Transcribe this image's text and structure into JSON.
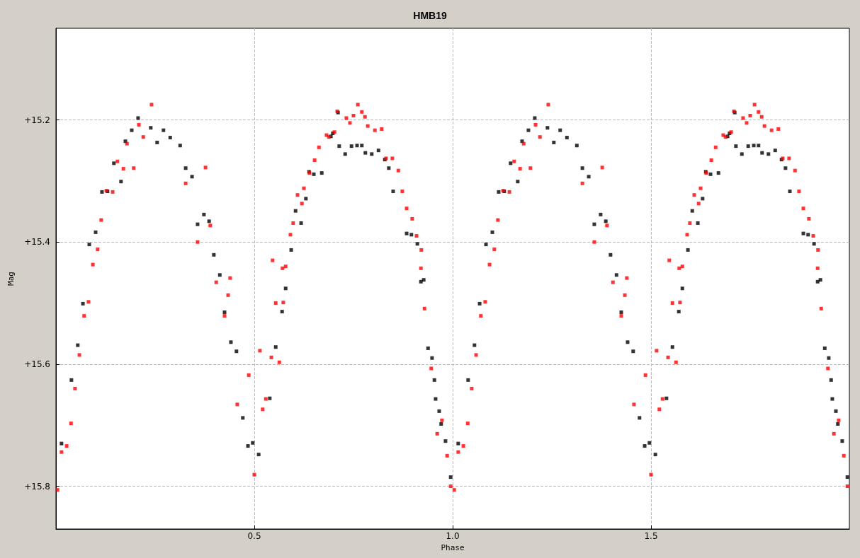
{
  "chart_data": {
    "type": "scatter",
    "title": "HMB19",
    "xlabel": "Phase",
    "ylabel": "Mag",
    "xlim": [
      0,
      2
    ],
    "xticks": [
      0.5,
      {
        "value": 1,
        "label": "1.0"
      },
      1.5
    ],
    "ylim": [
      15.87,
      15.05
    ],
    "yticks": [
      {
        "value": 15.2,
        "label": "+15.2"
      },
      {
        "value": 15.4,
        "label": "+15.4"
      },
      {
        "value": 15.6,
        "label": "+15.6"
      },
      {
        "value": 15.8,
        "label": "+15.8"
      }
    ],
    "grid": true,
    "marker": "square",
    "series": [
      {
        "color": "#000000",
        "x": [
          0.014,
          0.039,
          0.055,
          0.068,
          0.084,
          0.1,
          0.116,
          0.13,
          0.146,
          0.164,
          0.175,
          0.191,
          0.207,
          0.239,
          0.255,
          0.271,
          0.288,
          0.313,
          0.327,
          0.343,
          0.357,
          0.373,
          0.386,
          0.398,
          0.413,
          0.425,
          0.441,
          0.455,
          0.471,
          0.484,
          0.496,
          0.511,
          0.539,
          0.554,
          0.57,
          0.579,
          0.593,
          0.604,
          0.618,
          0.63,
          0.638,
          0.65,
          0.67,
          0.693,
          0.698,
          0.711,
          0.714,
          0.729,
          0.745,
          0.759,
          0.771,
          0.78,
          0.796,
          0.813,
          0.829,
          0.839,
          0.85,
          0.884,
          0.896,
          0.911,
          0.92,
          0.927,
          0.938,
          0.948,
          0.954,
          0.957,
          0.966,
          0.971,
          0.982,
          0.995,
          1.014,
          1.039,
          1.055,
          1.068,
          1.084,
          1.1,
          1.116,
          1.13,
          1.146,
          1.164,
          1.175,
          1.191,
          1.207,
          1.239,
          1.255,
          1.271,
          1.288,
          1.313,
          1.327,
          1.343,
          1.357,
          1.373,
          1.386,
          1.398,
          1.413,
          1.425,
          1.441,
          1.455,
          1.471,
          1.484,
          1.496,
          1.511,
          1.539,
          1.554,
          1.57,
          1.579,
          1.593,
          1.604,
          1.618,
          1.63,
          1.638,
          1.65,
          1.67,
          1.693,
          1.698,
          1.711,
          1.714,
          1.729,
          1.745,
          1.759,
          1.771,
          1.78,
          1.796,
          1.813,
          1.829,
          1.839,
          1.85,
          1.884,
          1.896,
          1.911,
          1.92,
          1.927,
          1.938,
          1.948,
          1.954,
          1.957,
          1.966,
          1.971,
          1.982,
          1.995
        ],
        "values": [
          15.73,
          15.626,
          15.569,
          15.501,
          15.404,
          15.384,
          15.318,
          15.317,
          15.271,
          15.301,
          15.235,
          15.217,
          15.197,
          15.213,
          15.237,
          15.217,
          15.229,
          15.242,
          15.279,
          15.293,
          15.371,
          15.355,
          15.366,
          15.421,
          15.454,
          15.515,
          15.564,
          15.579,
          15.688,
          15.734,
          15.729,
          15.748,
          15.656,
          15.572,
          15.514,
          15.476,
          15.413,
          15.349,
          15.369,
          15.329,
          15.285,
          15.289,
          15.287,
          15.227,
          15.222,
          15.188,
          15.243,
          15.256,
          15.243,
          15.242,
          15.242,
          15.254,
          15.256,
          15.25,
          15.265,
          15.279,
          15.317,
          15.386,
          15.388,
          15.403,
          15.465,
          15.462,
          15.574,
          15.59,
          15.626,
          15.657,
          15.677,
          15.698,
          15.726,
          15.785,
          15.73,
          15.626,
          15.569,
          15.501,
          15.404,
          15.384,
          15.318,
          15.317,
          15.271,
          15.301,
          15.235,
          15.217,
          15.197,
          15.213,
          15.237,
          15.217,
          15.229,
          15.242,
          15.279,
          15.293,
          15.371,
          15.355,
          15.366,
          15.421,
          15.454,
          15.515,
          15.564,
          15.579,
          15.688,
          15.734,
          15.729,
          15.748,
          15.656,
          15.572,
          15.514,
          15.476,
          15.413,
          15.349,
          15.369,
          15.329,
          15.285,
          15.289,
          15.287,
          15.227,
          15.222,
          15.188,
          15.243,
          15.256,
          15.243,
          15.242,
          15.242,
          15.254,
          15.256,
          15.25,
          15.265,
          15.279,
          15.317,
          15.386,
          15.388,
          15.403,
          15.465,
          15.462,
          15.574,
          15.59,
          15.626,
          15.657,
          15.677,
          15.698,
          15.726,
          15.785
        ]
      },
      {
        "color": "#ff0000",
        "x": [
          0.004,
          0.014,
          0.027,
          0.038,
          0.048,
          0.059,
          0.071,
          0.082,
          0.093,
          0.105,
          0.114,
          0.127,
          0.143,
          0.155,
          0.17,
          0.179,
          0.196,
          0.209,
          0.22,
          0.241,
          0.327,
          0.377,
          0.357,
          0.389,
          0.404,
          0.439,
          0.434,
          0.425,
          0.457,
          0.486,
          0.5,
          0.514,
          0.521,
          0.529,
          0.543,
          0.546,
          0.554,
          0.563,
          0.571,
          0.573,
          0.579,
          0.591,
          0.598,
          0.609,
          0.62,
          0.625,
          0.639,
          0.652,
          0.663,
          0.682,
          0.688,
          0.702,
          0.709,
          0.732,
          0.741,
          0.75,
          0.761,
          0.771,
          0.779,
          0.786,
          0.804,
          0.821,
          0.832,
          0.848,
          0.863,
          0.873,
          0.884,
          0.898,
          0.909,
          0.921,
          0.92,
          0.929,
          0.946,
          0.961,
          0.973,
          0.986,
          0.995,
          1.004,
          1.014,
          1.027,
          1.038,
          1.048,
          1.059,
          1.071,
          1.082,
          1.093,
          1.105,
          1.114,
          1.127,
          1.143,
          1.155,
          1.17,
          1.179,
          1.196,
          1.209,
          1.22,
          1.241,
          1.327,
          1.377,
          1.357,
          1.389,
          1.404,
          1.439,
          1.434,
          1.425,
          1.457,
          1.486,
          1.5,
          1.514,
          1.521,
          1.529,
          1.543,
          1.546,
          1.554,
          1.563,
          1.571,
          1.573,
          1.579,
          1.591,
          1.598,
          1.609,
          1.62,
          1.625,
          1.639,
          1.652,
          1.663,
          1.682,
          1.688,
          1.702,
          1.709,
          1.732,
          1.741,
          1.75,
          1.761,
          1.771,
          1.779,
          1.786,
          1.804,
          1.821,
          1.832,
          1.848,
          1.863,
          1.873,
          1.884,
          1.898,
          1.909,
          1.921,
          1.92,
          1.929,
          1.946,
          1.961,
          1.973,
          1.986,
          1.995
        ],
        "values": [
          15.806,
          15.744,
          15.734,
          15.697,
          15.64,
          15.585,
          15.521,
          15.498,
          15.437,
          15.412,
          15.364,
          15.316,
          15.318,
          15.268,
          15.28,
          15.239,
          15.279,
          15.208,
          15.228,
          15.175,
          15.304,
          15.278,
          15.4,
          15.373,
          15.466,
          15.459,
          15.487,
          15.521,
          15.666,
          15.618,
          15.781,
          15.578,
          15.674,
          15.657,
          15.589,
          15.43,
          15.5,
          15.597,
          15.443,
          15.499,
          15.44,
          15.388,
          15.369,
          15.323,
          15.337,
          15.312,
          15.287,
          15.266,
          15.245,
          15.225,
          15.228,
          15.22,
          15.186,
          15.197,
          15.205,
          15.193,
          15.175,
          15.187,
          15.195,
          15.21,
          15.217,
          15.215,
          15.263,
          15.263,
          15.283,
          15.317,
          15.345,
          15.362,
          15.39,
          15.413,
          15.443,
          15.509,
          15.607,
          15.714,
          15.692,
          15.75,
          15.8,
          15.806,
          15.744,
          15.734,
          15.697,
          15.64,
          15.585,
          15.521,
          15.498,
          15.437,
          15.412,
          15.364,
          15.316,
          15.318,
          15.268,
          15.28,
          15.239,
          15.279,
          15.208,
          15.228,
          15.175,
          15.304,
          15.278,
          15.4,
          15.373,
          15.466,
          15.459,
          15.487,
          15.521,
          15.666,
          15.618,
          15.781,
          15.578,
          15.674,
          15.657,
          15.589,
          15.43,
          15.5,
          15.597,
          15.443,
          15.499,
          15.44,
          15.388,
          15.369,
          15.323,
          15.337,
          15.312,
          15.287,
          15.266,
          15.245,
          15.225,
          15.228,
          15.22,
          15.186,
          15.197,
          15.205,
          15.193,
          15.175,
          15.187,
          15.195,
          15.21,
          15.217,
          15.215,
          15.263,
          15.263,
          15.283,
          15.317,
          15.345,
          15.362,
          15.39,
          15.413,
          15.443,
          15.509,
          15.607,
          15.714,
          15.692,
          15.75,
          15.8
        ]
      }
    ]
  }
}
